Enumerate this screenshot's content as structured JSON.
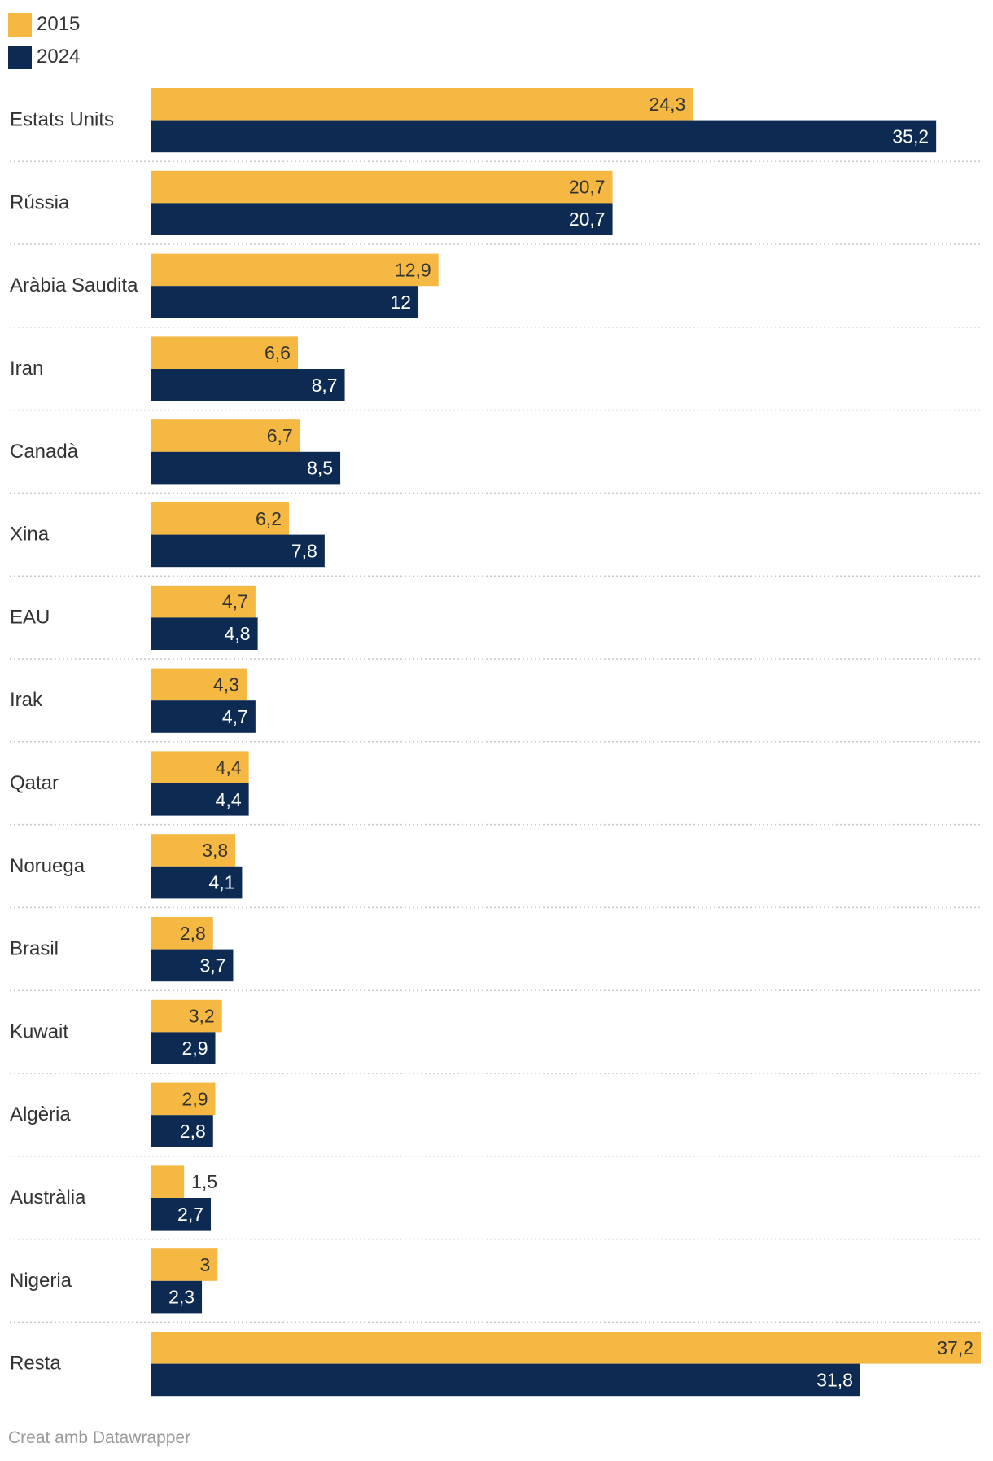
{
  "colors": {
    "2015": "#f5b843",
    "2024": "#0d2b52",
    "grid": "#c8c8c8",
    "label_dark": "#333333",
    "label_light": "#ffffff"
  },
  "legend": [
    {
      "name": "2015",
      "color": "#f5b843"
    },
    {
      "name": "2024",
      "color": "#0d2b52"
    }
  ],
  "chart_data": {
    "type": "bar",
    "orientation": "horizontal",
    "title": "",
    "xlabel": "",
    "ylabel": "",
    "xlim": [
      0,
      37.2
    ],
    "grid": false,
    "legend_position": "top-left",
    "categories": [
      "Estats Units",
      "Rússia",
      "Aràbia Saudita",
      "Iran",
      "Canadà",
      "Xina",
      "EAU",
      "Irak",
      "Qatar",
      "Noruega",
      "Brasil",
      "Kuwait",
      "Algèria",
      "Austràlia",
      "Nigeria",
      "Resta"
    ],
    "series": [
      {
        "name": "2015",
        "values": [
          24.3,
          20.7,
          12.9,
          6.6,
          6.7,
          6.2,
          4.7,
          4.3,
          4.4,
          3.8,
          2.8,
          3.2,
          2.9,
          1.5,
          3,
          37.2
        ],
        "labels": [
          "24,3",
          "20,7",
          "12,9",
          "6,6",
          "6,7",
          "6,2",
          "4,7",
          "4,3",
          "4,4",
          "3,8",
          "2,8",
          "3,2",
          "2,9",
          "1,5",
          "3",
          "37,2"
        ]
      },
      {
        "name": "2024",
        "values": [
          35.2,
          20.7,
          12,
          8.7,
          8.5,
          7.8,
          4.8,
          4.7,
          4.4,
          4.1,
          3.7,
          2.9,
          2.8,
          2.7,
          2.3,
          31.8
        ],
        "labels": [
          "35,2",
          "20,7",
          "12",
          "8,7",
          "8,5",
          "7,8",
          "4,8",
          "4,7",
          "4,4",
          "4,1",
          "3,7",
          "2,9",
          "2,8",
          "2,7",
          "2,3",
          "31,8"
        ]
      }
    ]
  },
  "footer": {
    "credit": "Creat amb Datawrapper"
  }
}
